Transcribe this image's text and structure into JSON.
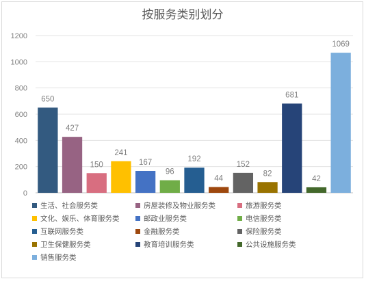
{
  "chart_data": {
    "type": "bar",
    "title": "按服务类别划分",
    "xlabel": "",
    "ylabel": "",
    "ylim": [
      0,
      1200
    ],
    "yticks": [
      0,
      200,
      400,
      600,
      800,
      1000,
      1200
    ],
    "grid": true,
    "legend_position": "bottom",
    "categories": [
      "生活、社会服务类",
      "房屋装修及物业服务类",
      "旅游服务类",
      "文化、娱乐、体育服务类",
      "邮政业服务类",
      "电信服务类",
      "互联网服务类",
      "金融服务类",
      "保险服务类",
      "卫生保健服务类",
      "教育培训服务类",
      "公共设施服务类",
      "销售服务类"
    ],
    "values": [
      650,
      427,
      150,
      241,
      167,
      96,
      192,
      44,
      152,
      82,
      681,
      42,
      1069
    ],
    "colors": [
      "#335a80",
      "#976383",
      "#d86e80",
      "#ffc000",
      "#4472c4",
      "#70ad47",
      "#255e91",
      "#9e480e",
      "#636363",
      "#997300",
      "#264478",
      "#43682b",
      "#7cafdd"
    ]
  }
}
